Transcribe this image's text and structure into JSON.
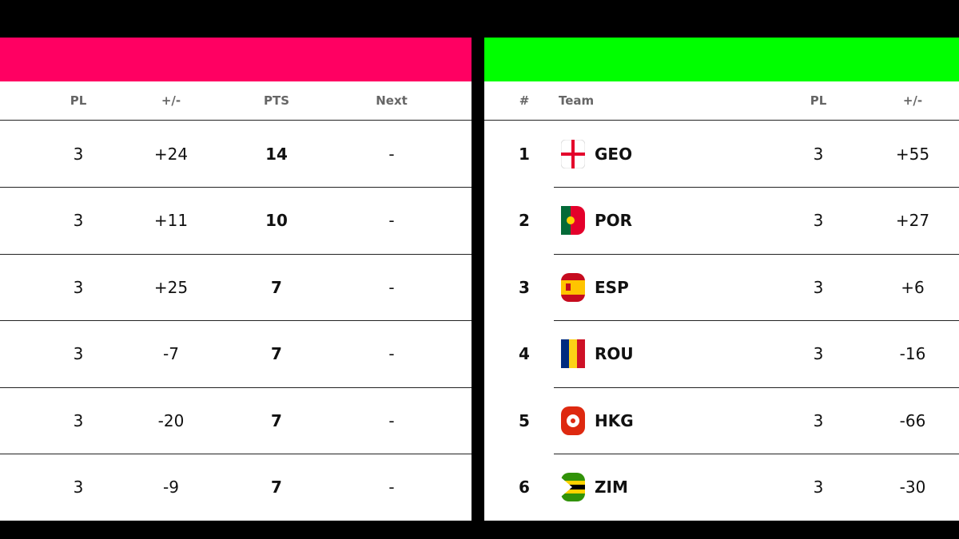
{
  "left_table": {
    "columns": [
      "PL",
      "+/-",
      "PTS",
      "Next"
    ],
    "rows": [
      [
        3,
        "+24",
        14,
        "-"
      ],
      [
        3,
        "+11",
        10,
        "-"
      ],
      [
        3,
        "+25",
        7,
        "-"
      ],
      [
        3,
        "-7",
        7,
        "-"
      ],
      [
        3,
        "-20",
        7,
        "-"
      ],
      [
        3,
        "-9",
        7,
        "-"
      ]
    ]
  },
  "right_table": {
    "columns": [
      "#",
      "Team",
      "PL",
      "+/-"
    ],
    "rows": [
      [
        1,
        "GEO",
        3,
        "+55"
      ],
      [
        2,
        "POR",
        3,
        "+27"
      ],
      [
        3,
        "ESP",
        3,
        "+6"
      ],
      [
        4,
        "ROU",
        3,
        "-16"
      ],
      [
        5,
        "HKG",
        3,
        "-66"
      ],
      [
        6,
        "ZIM",
        3,
        "-30"
      ]
    ]
  }
}
